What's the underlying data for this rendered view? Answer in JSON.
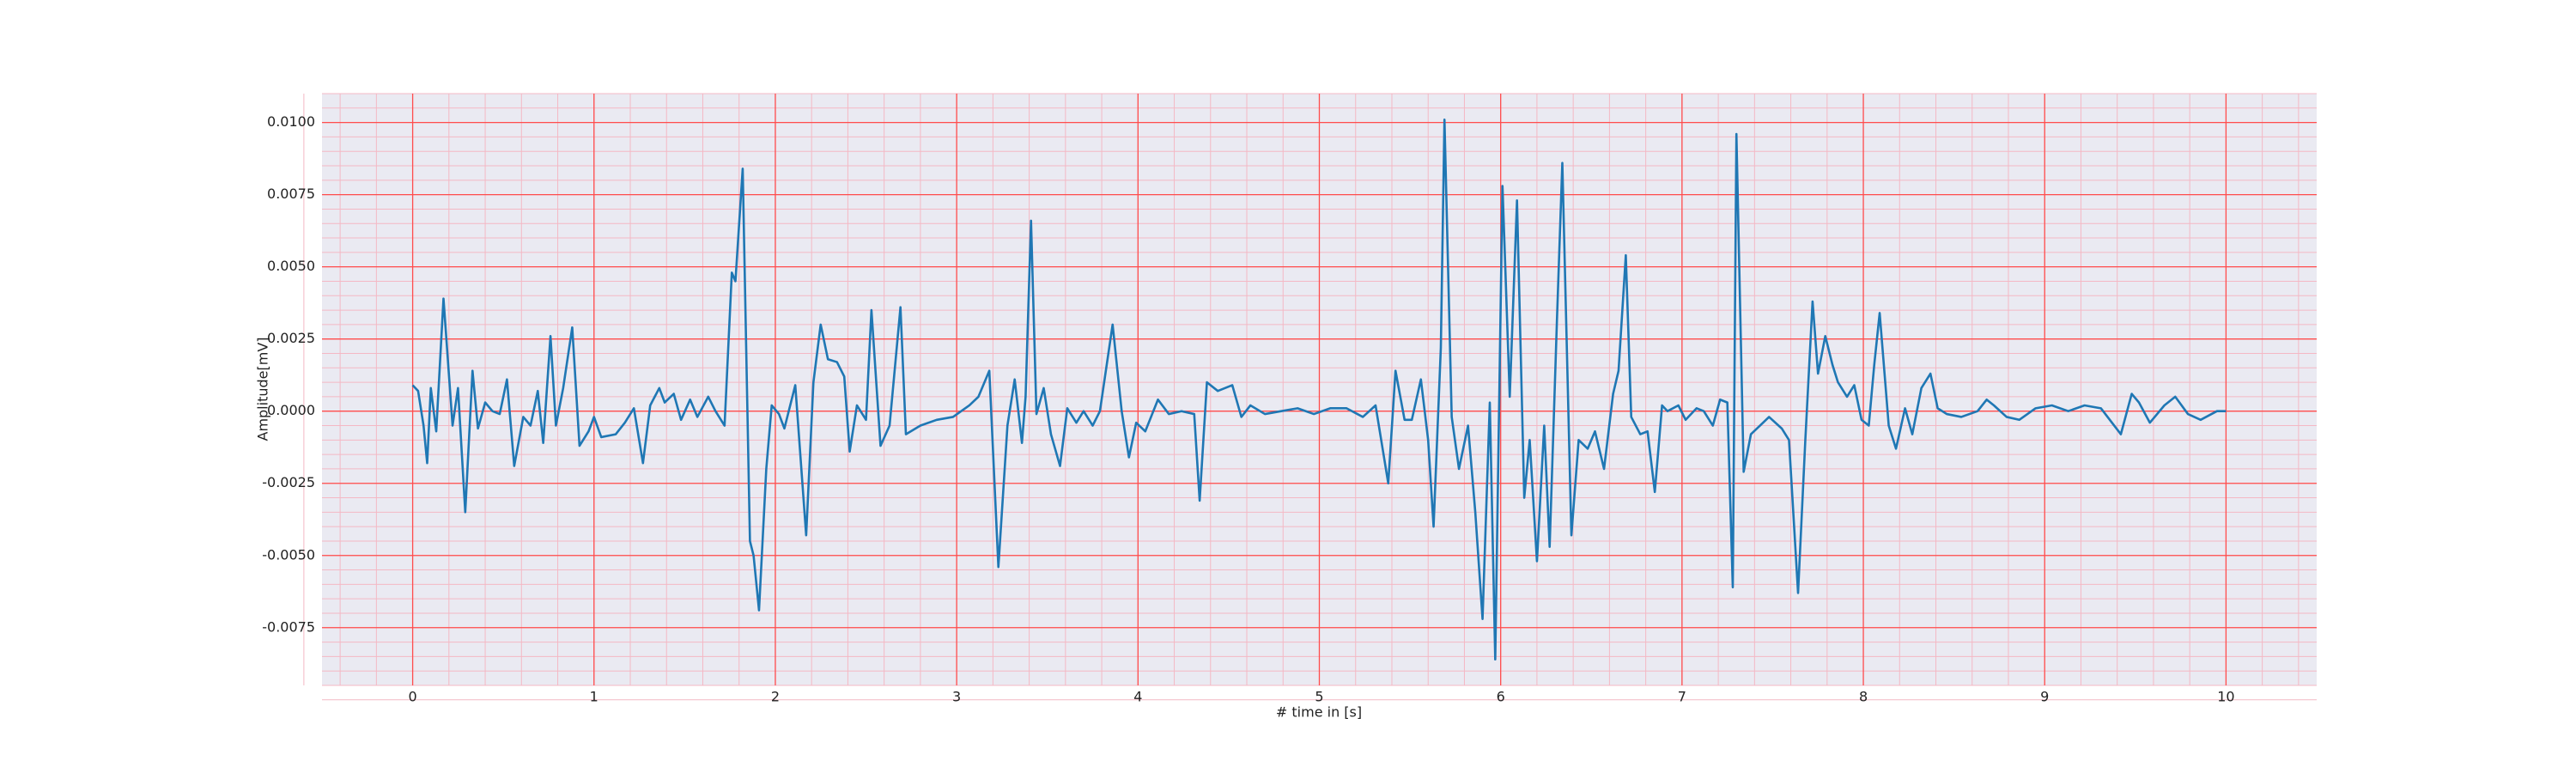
{
  "chart_data": {
    "type": "line",
    "xlabel": "# time in [s]",
    "ylabel": "Amplitude[mV]",
    "color": "#1f77b4",
    "background": "#eaeaf2",
    "grid_color": "#ff4d4d",
    "minor_grid_color": "#f4b8c4",
    "grid": true,
    "minor_grid": 5,
    "xlim": [
      -0.5,
      10.5
    ],
    "xticks": [
      0,
      1,
      2,
      3,
      4,
      5,
      6,
      7,
      8,
      9,
      10
    ],
    "ylim": [
      -0.0095,
      0.011
    ],
    "yticks": [
      {
        "value": -0.0075,
        "label": "-0.0075"
      },
      {
        "value": -0.005,
        "label": "-0.0050"
      },
      {
        "value": -0.0025,
        "label": "-0.0025"
      },
      {
        "value": 0,
        "label": "0.0000"
      },
      {
        "value": 0.0025,
        "label": "0.0025"
      },
      {
        "value": 0.005,
        "label": "0.0050"
      },
      {
        "value": 0.0075,
        "label": "0.0075"
      },
      {
        "value": 0.01,
        "label": "0.0100"
      }
    ],
    "x": [
      0,
      0.03,
      0.06,
      0.08,
      0.1,
      0.13,
      0.17,
      0.22,
      0.25,
      0.29,
      0.33,
      0.36,
      0.4,
      0.44,
      0.48,
      0.52,
      0.56,
      0.61,
      0.65,
      0.69,
      0.72,
      0.76,
      0.79,
      0.83,
      0.88,
      0.92,
      0.97,
      1.0,
      1.04,
      1.12,
      1.17,
      1.22,
      1.27,
      1.31,
      1.36,
      1.39,
      1.44,
      1.48,
      1.53,
      1.57,
      1.63,
      1.67,
      1.72,
      1.76,
      1.78,
      1.82,
      1.86,
      1.88,
      1.91,
      1.95,
      1.98,
      2.02,
      2.05,
      2.11,
      2.17,
      2.21,
      2.25,
      2.29,
      2.34,
      2.38,
      2.41,
      2.45,
      2.5,
      2.53,
      2.58,
      2.63,
      2.69,
      2.72,
      2.8,
      2.89,
      2.98,
      3.07,
      3.12,
      3.18,
      3.23,
      3.28,
      3.32,
      3.36,
      3.38,
      3.41,
      3.44,
      3.48,
      3.52,
      3.57,
      3.61,
      3.66,
      3.7,
      3.75,
      3.79,
      3.86,
      3.91,
      3.95,
      3.99,
      4.04,
      4.11,
      4.17,
      4.24,
      4.31,
      4.34,
      4.38,
      4.44,
      4.52,
      4.57,
      4.62,
      4.7,
      4.79,
      4.88,
      4.97,
      5.06,
      5.15,
      5.24,
      5.31,
      5.38,
      5.42,
      5.47,
      5.51,
      5.56,
      5.6,
      5.63,
      5.67,
      5.69,
      5.73,
      5.77,
      5.82,
      5.86,
      5.9,
      5.94,
      5.97,
      6.01,
      6.05,
      6.09,
      6.13,
      6.16,
      6.2,
      6.24,
      6.27,
      6.31,
      6.34,
      6.39,
      6.43,
      6.48,
      6.52,
      6.57,
      6.62,
      6.65,
      6.69,
      6.72,
      6.77,
      6.81,
      6.85,
      6.89,
      6.92,
      6.98,
      7.02,
      7.08,
      7.12,
      7.17,
      7.21,
      7.25,
      7.28,
      7.3,
      7.34,
      7.38,
      7.43,
      7.48,
      7.55,
      7.59,
      7.64,
      7.68,
      7.72,
      7.75,
      7.79,
      7.83,
      7.86,
      7.91,
      7.95,
      7.99,
      8.03,
      8.06,
      8.09,
      8.14,
      8.18,
      8.23,
      8.27,
      8.32,
      8.37,
      8.41,
      8.46,
      8.54,
      8.63,
      8.68,
      8.72,
      8.79,
      8.86,
      8.95,
      9.04,
      9.13,
      9.22,
      9.31,
      9.42,
      9.48,
      9.52,
      9.58,
      9.66,
      9.72,
      9.79,
      9.86,
      9.95,
      10.0
    ],
    "values": [
      0.0009,
      0.0007,
      -0.0005,
      -0.0018,
      0.0008,
      -0.0007,
      0.0039,
      -0.0005,
      0.0008,
      -0.0035,
      0.0014,
      -0.0006,
      0.0003,
      0.0,
      -0.0001,
      0.0011,
      -0.0019,
      -0.0002,
      -0.0005,
      0.0007,
      -0.0011,
      0.0026,
      -0.0005,
      0.0008,
      0.0029,
      -0.0012,
      -0.0007,
      -0.0002,
      -0.0009,
      -0.0008,
      -0.0004,
      0.0001,
      -0.0018,
      0.0002,
      0.0008,
      0.0003,
      0.0006,
      -0.0003,
      0.0004,
      -0.0002,
      0.0005,
      0.0,
      -0.0005,
      0.0048,
      0.0045,
      0.0084,
      -0.0045,
      -0.005,
      -0.0069,
      -0.002,
      0.0002,
      -0.0001,
      -0.0006,
      0.0009,
      -0.0043,
      0.001,
      0.003,
      0.0018,
      0.0017,
      0.0012,
      -0.0014,
      0.0002,
      -0.0003,
      0.0035,
      -0.0012,
      -0.0005,
      0.0036,
      -0.0008,
      -0.0005,
      -0.0003,
      -0.0002,
      0.0002,
      0.0005,
      0.0014,
      -0.0054,
      -0.0005,
      0.0011,
      -0.0011,
      0.0005,
      0.0066,
      -0.0001,
      0.0008,
      -0.0008,
      -0.0019,
      0.0001,
      -0.0004,
      0.0,
      -0.0005,
      0.0,
      0.003,
      0.0,
      -0.0016,
      -0.0004,
      -0.0007,
      0.0004,
      -0.0001,
      0.0,
      -0.0001,
      -0.0031,
      0.001,
      0.0007,
      0.0009,
      -0.0002,
      0.0002,
      -0.0001,
      0.0,
      0.0001,
      -0.0001,
      0.0001,
      0.0001,
      -0.0002,
      0.0002,
      -0.0025,
      0.0014,
      -0.0003,
      -0.0003,
      0.0011,
      -0.001,
      -0.004,
      0.0022,
      0.0101,
      -0.0002,
      -0.002,
      -0.0005,
      -0.0035,
      -0.0072,
      0.0003,
      -0.0086,
      0.0078,
      0.0005,
      0.0073,
      -0.003,
      -0.001,
      -0.0052,
      -0.0005,
      -0.0047,
      0.0031,
      0.0086,
      -0.0043,
      -0.001,
      -0.0013,
      -0.0007,
      -0.002,
      0.0006,
      0.0014,
      0.0054,
      -0.0002,
      -0.0008,
      -0.0007,
      -0.0028,
      0.0002,
      0.0,
      0.0002,
      -0.0003,
      0.0001,
      0.0,
      -0.0005,
      0.0004,
      0.0003,
      -0.0061,
      0.0096,
      -0.0021,
      -0.0008,
      -0.0005,
      -0.0002,
      -0.0006,
      -0.001,
      -0.0063,
      -0.001,
      0.0038,
      0.0013,
      0.0026,
      0.0016,
      0.001,
      0.0005,
      0.0009,
      -0.0003,
      -0.0005,
      0.0016,
      0.0034,
      -0.0005,
      -0.0013,
      0.0001,
      -0.0008,
      0.0008,
      0.0013,
      0.0001,
      -0.0001,
      -0.0002,
      0.0,
      0.0004,
      0.0002,
      -0.0002,
      -0.0003,
      0.0001,
      0.0002,
      0.0,
      0.0002,
      0.0001,
      -0.0008,
      0.0006,
      0.0003,
      -0.0004,
      0.0002,
      0.0005,
      -0.0001,
      -0.0003,
      0.0,
      0.0
    ]
  }
}
